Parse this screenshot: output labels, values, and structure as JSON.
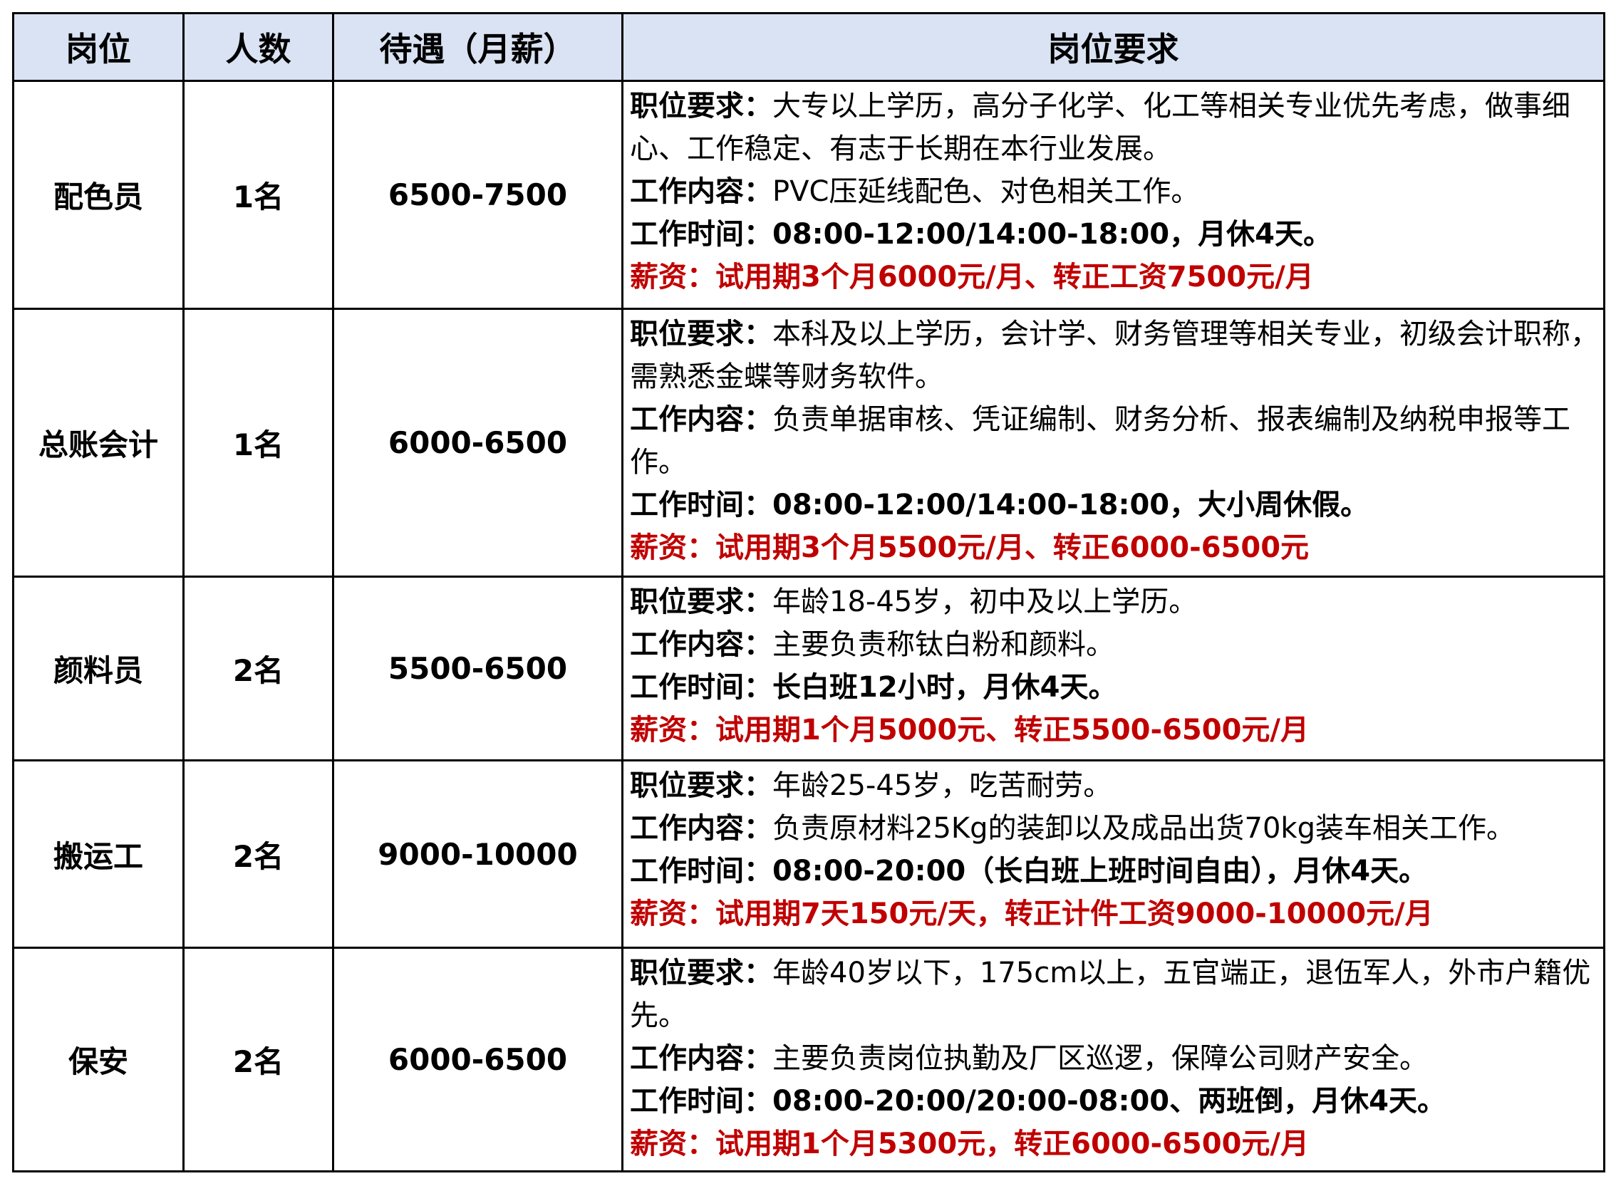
{
  "headers": [
    "岗位",
    "人数",
    "待遇（月薪）",
    "岗位要求"
  ],
  "colors": {
    "header_bg": "#dae3f3",
    "salary_red": "#c00000"
  },
  "rows": [
    {
      "position": "配色员",
      "count": "1名",
      "salary": "6500-7500",
      "req_label": "职位要求：",
      "req": "大专以上学历，高分子化学、化工等相关专业优先考虑，做事细心、工作稳定、有志于长期在本行业发展。",
      "content_label": "工作内容：",
      "content": "PVC压延线配色、对色相关工作。",
      "hours": "工作时间：08:00-12:00/14:00-18:00，月休4天。",
      "pay": "薪资：试用期3个月6000元/月、转正工资7500元/月"
    },
    {
      "position": "总账会计",
      "count": "1名",
      "salary": "6000-6500",
      "req_label": "职位要求：",
      "req": "本科及以上学历，会计学、财务管理等相关专业，初级会计职称，需熟悉金蝶等财务软件。",
      "content_label": "工作内容：",
      "content": "负责单据审核、凭证编制、财务分析、报表编制及纳税申报等工作。",
      "hours": "工作时间：08:00-12:00/14:00-18:00，大小周休假。",
      "pay": "薪资：试用期3个月5500元/月、转正6000-6500元"
    },
    {
      "position": "颜料员",
      "count": "2名",
      "salary": "5500-6500",
      "req_label": "职位要求：",
      "req": "年龄18-45岁，初中及以上学历。",
      "content_label": "工作内容：",
      "content": "主要负责称钛白粉和颜料。",
      "hours": "工作时间：长白班12小时，月休4天。",
      "pay": "薪资：试用期1个月5000元、转正5500-6500元/月"
    },
    {
      "position": "搬运工",
      "count": "2名",
      "salary": "9000-10000",
      "req_label": "职位要求：",
      "req": "年龄25-45岁，吃苦耐劳。",
      "content_label": "工作内容：",
      "content": "负责原材料25Kg的装卸以及成品出货70kg装车相关工作。",
      "hours": "工作时间：08:00-20:00（长白班上班时间自由），月休4天。",
      "pay": "薪资：试用期7天150元/天，转正计件工资9000-10000元/月"
    },
    {
      "position": "保安",
      "count": "2名",
      "salary": "6000-6500",
      "req_label": "职位要求：",
      "req": "年龄40岁以下，175cm以上，五官端正，退伍军人，外市户籍优先。",
      "content_label": "工作内容：",
      "content": "主要负责岗位执勤及厂区巡逻，保障公司财产安全。",
      "hours": "工作时间：08:00-20:00/20:00-08:00、两班倒，月休4天。",
      "pay": "薪资：试用期1个月5300元，转正6000-6500元/月"
    }
  ]
}
